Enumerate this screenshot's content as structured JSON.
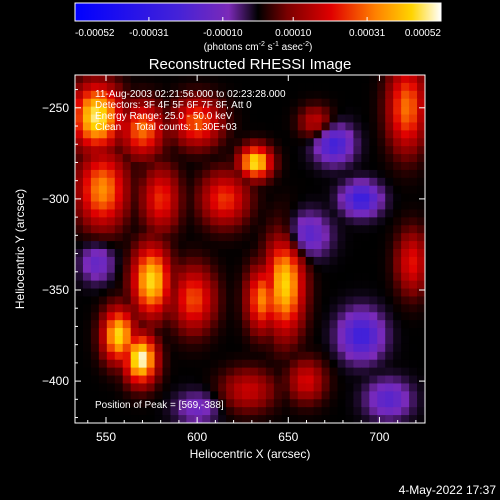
{
  "chart_data": {
    "type": "heatmap",
    "title": "Reconstructed RHESSI Image",
    "xlabel": "Heliocentric X (arcsec)",
    "ylabel": "Heliocentric Y (arcsec)",
    "xlim": [
      533,
      725
    ],
    "ylim": [
      -423,
      -232
    ],
    "x_ticks": [
      550,
      600,
      650,
      700
    ],
    "y_ticks": [
      -250,
      -300,
      -350,
      -400
    ],
    "colorbar": {
      "min": -0.00052,
      "max": 0.00052,
      "ticks": [
        -0.00052,
        -0.00031,
        -0.0001,
        0.0001,
        0.00031,
        0.00052
      ],
      "tick_labels": [
        "-0.00052",
        "-0.00031",
        "-0.00010",
        "0.00010",
        "0.00031",
        "0.00052"
      ],
      "unit_parts": [
        "(photons cm",
        "-2",
        " s",
        "-1",
        " asec",
        "-2",
        ")"
      ]
    },
    "annotations": [
      "11-Aug-2003 02:21:56.000 to 02:23:28.000",
      "Detectors: 3F 4F 5F 6F 7F 8F, Att 0",
      "Energy Range: 25.0 - 50.0 keV",
      "Clean     Total counts: 1.30E+03",
      "Position of Peak = [569,-388]"
    ],
    "sources": [
      {
        "x": 569,
        "y": -388,
        "value": 0.00052,
        "sx": 6,
        "sy": 9
      },
      {
        "x": 557,
        "y": -375,
        "value": 0.00045,
        "sx": 6,
        "sy": 10
      },
      {
        "x": 545,
        "y": -255,
        "value": 0.00048,
        "sx": 9,
        "sy": 12
      },
      {
        "x": 548,
        "y": -295,
        "value": 0.00035,
        "sx": 9,
        "sy": 14
      },
      {
        "x": 570,
        "y": -262,
        "value": 0.00032,
        "sx": 8,
        "sy": 10
      },
      {
        "x": 580,
        "y": -300,
        "value": 0.00025,
        "sx": 7,
        "sy": 12
      },
      {
        "x": 600,
        "y": -258,
        "value": 0.0003,
        "sx": 9,
        "sy": 9
      },
      {
        "x": 615,
        "y": -300,
        "value": 0.00026,
        "sx": 9,
        "sy": 10
      },
      {
        "x": 632,
        "y": -280,
        "value": 0.00047,
        "sx": 6,
        "sy": 6
      },
      {
        "x": 575,
        "y": -345,
        "value": 0.00045,
        "sx": 7,
        "sy": 13
      },
      {
        "x": 598,
        "y": -355,
        "value": 0.00028,
        "sx": 8,
        "sy": 12
      },
      {
        "x": 648,
        "y": -347,
        "value": 0.00044,
        "sx": 7,
        "sy": 18
      },
      {
        "x": 636,
        "y": -355,
        "value": 0.00034,
        "sx": 6,
        "sy": 12
      },
      {
        "x": 628,
        "y": -405,
        "value": 0.00018,
        "sx": 10,
        "sy": 8
      },
      {
        "x": 660,
        "y": -400,
        "value": 0.0002,
        "sx": 7,
        "sy": 8
      },
      {
        "x": 715,
        "y": -250,
        "value": 0.00032,
        "sx": 7,
        "sy": 16
      },
      {
        "x": 718,
        "y": -335,
        "value": 0.00022,
        "sx": 6,
        "sy": 12
      },
      {
        "x": 665,
        "y": -258,
        "value": 0.00018,
        "sx": 6,
        "sy": 6
      },
      {
        "x": 690,
        "y": -300,
        "value": -0.00045,
        "sx": 7,
        "sy": 6
      },
      {
        "x": 675,
        "y": -270,
        "value": -0.0004,
        "sx": 7,
        "sy": 7
      },
      {
        "x": 690,
        "y": -375,
        "value": -0.00042,
        "sx": 8,
        "sy": 9
      },
      {
        "x": 660,
        "y": -320,
        "value": -0.00032,
        "sx": 8,
        "sy": 8
      },
      {
        "x": 545,
        "y": -335,
        "value": -0.00025,
        "sx": 6,
        "sy": 7
      },
      {
        "x": 600,
        "y": -415,
        "value": -0.0002,
        "sx": 8,
        "sy": 6
      },
      {
        "x": 705,
        "y": -410,
        "value": -0.0003,
        "sx": 8,
        "sy": 7
      }
    ],
    "background": -0.00022,
    "plot_date": "4-May-2022 17:37"
  }
}
